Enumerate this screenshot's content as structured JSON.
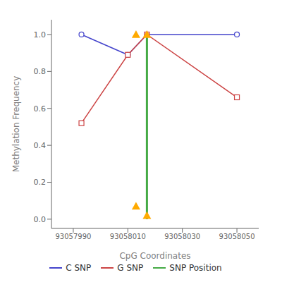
{
  "chart_data": {
    "type": "line",
    "xlabel": "CpG Coordinates",
    "ylabel": "Methylation Frequency",
    "xlim": [
      93057982,
      93058058
    ],
    "ylim": [
      -0.05,
      1.08
    ],
    "xticks": [
      93057990,
      93058010,
      93058030,
      93058050
    ],
    "yticks": [
      {
        "value": 0.0,
        "label": "0.0"
      },
      0.2,
      0.4,
      0.6,
      0.8,
      {
        "value": 1.0,
        "label": "1.0"
      }
    ],
    "grid": false,
    "legend": "bottom",
    "series": [
      {
        "name": "C SNP",
        "type": "line",
        "color": "#4444cc",
        "marker": "circle",
        "x": [
          93057993,
          93058010,
          93058017,
          93058050
        ],
        "values": [
          1.0,
          0.89,
          1.0,
          1.0
        ]
      },
      {
        "name": "G SNP",
        "type": "line",
        "color": "#cc4444",
        "marker": "square",
        "x": [
          93057993,
          93058010,
          93058017,
          93058050
        ],
        "values": [
          0.52,
          0.89,
          1.0,
          0.66
        ]
      },
      {
        "name": "SNP Position",
        "type": "line",
        "color": "#44aa44",
        "x": [
          93058017,
          93058017
        ],
        "values": [
          0.0,
          1.0
        ]
      },
      {
        "type": "scatter",
        "color": "#ffaa00",
        "marker": "triangle",
        "x": [
          93058013,
          93058017
        ],
        "values": [
          1.0,
          1.0
        ]
      },
      {
        "type": "scatter",
        "color": "#ffaa00",
        "marker": "triangle",
        "x": [
          93058013,
          93058017
        ],
        "values": [
          0.07,
          0.02
        ]
      }
    ]
  }
}
